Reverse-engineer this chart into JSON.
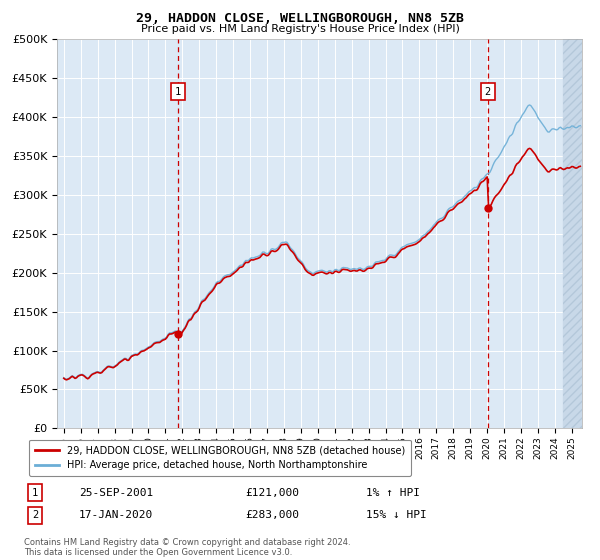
{
  "title": "29, HADDON CLOSE, WELLINGBOROUGH, NN8 5ZB",
  "subtitle": "Price paid vs. HM Land Registry's House Price Index (HPI)",
  "legend_line1": "29, HADDON CLOSE, WELLINGBOROUGH, NN8 5ZB (detached house)",
  "legend_line2": "HPI: Average price, detached house, North Northamptonshire",
  "annotation1_date": "25-SEP-2001",
  "annotation1_price": "£121,000",
  "annotation1_hpi": "1% ↑ HPI",
  "annotation1_year": 2001.73,
  "annotation1_value": 121000,
  "annotation2_date": "17-JAN-2020",
  "annotation2_price": "£283,000",
  "annotation2_hpi": "15% ↓ HPI",
  "annotation2_year": 2020.04,
  "annotation2_value": 283000,
  "hpi_color": "#6baed6",
  "price_color": "#cc0000",
  "plot_bg_color": "#dce9f5",
  "hatch_color": "#b8cfe0",
  "ylim": [
    0,
    500000
  ],
  "yticks": [
    0,
    50000,
    100000,
    150000,
    200000,
    250000,
    300000,
    350000,
    400000,
    450000,
    500000
  ],
  "footer": "Contains HM Land Registry data © Crown copyright and database right 2024.\nThis data is licensed under the Open Government Licence v3.0.",
  "xmin": 1994.6,
  "xmax": 2025.6
}
